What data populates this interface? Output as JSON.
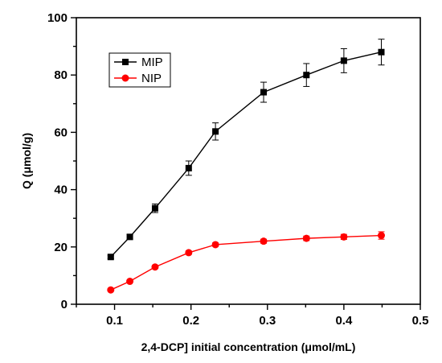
{
  "chart_data": {
    "type": "line",
    "title": "",
    "xlabel": "2,4-DCP] initial concentration (μmol/mL)",
    "ylabel": "Q (μmol/g)",
    "xlim": [
      0.05,
      0.5
    ],
    "ylim": [
      0,
      100
    ],
    "xticks": [
      0.1,
      0.2,
      0.3,
      0.4,
      0.5
    ],
    "yticks": [
      0,
      20,
      40,
      60,
      80,
      100
    ],
    "xtick_labels": [
      "0.1",
      "0.2",
      "0.3",
      "0.4",
      "0.5"
    ],
    "ytick_labels": [
      "0",
      "20",
      "40",
      "60",
      "80",
      "100"
    ],
    "grid": false,
    "legend_position": "top-left",
    "series": [
      {
        "name": "MIP",
        "color": "#000000",
        "marker": "square",
        "x": [
          0.095,
          0.12,
          0.153,
          0.197,
          0.232,
          0.295,
          0.351,
          0.4,
          0.449
        ],
        "y": [
          16.5,
          23.5,
          33.5,
          47.5,
          60.3,
          74,
          80,
          85,
          88
        ],
        "err": [
          0.6,
          0.8,
          1.5,
          2.5,
          3,
          3.5,
          4,
          4.2,
          4.5
        ]
      },
      {
        "name": "NIP",
        "color": "#ff0000",
        "marker": "circle",
        "x": [
          0.095,
          0.12,
          0.153,
          0.197,
          0.232,
          0.295,
          0.351,
          0.4,
          0.449
        ],
        "y": [
          5,
          8,
          13,
          18,
          20.8,
          22,
          23,
          23.5,
          24
        ],
        "err": [
          0.3,
          0.4,
          0.5,
          0.6,
          0.6,
          0.7,
          0.8,
          0.9,
          1.3
        ]
      }
    ]
  }
}
